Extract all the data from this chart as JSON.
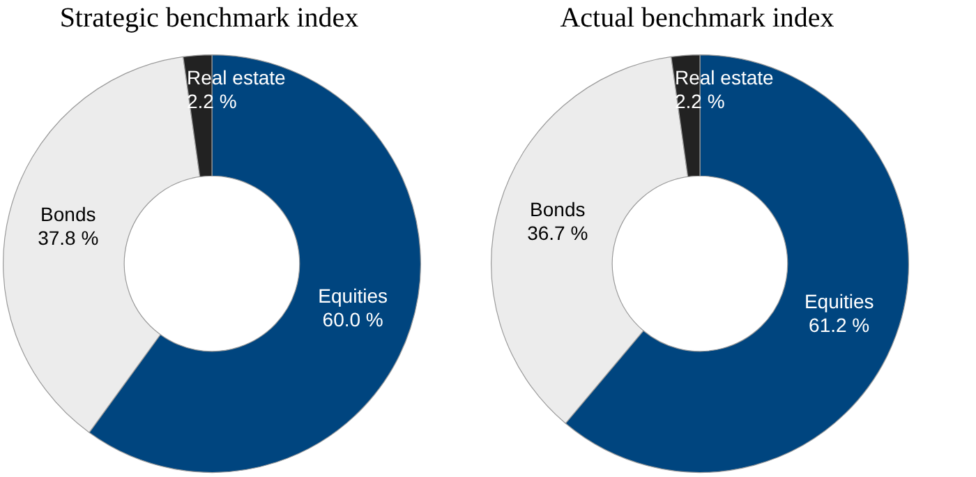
{
  "chart_data": [
    {
      "type": "donut",
      "title": "Strategic benchmark index",
      "categories": [
        "Equities",
        "Bonds",
        "Real estate"
      ],
      "values": [
        60.0,
        37.8,
        2.2
      ],
      "colors": [
        "#00457f",
        "#ececec",
        "#222222"
      ],
      "value_labels": [
        "60.0 %",
        "37.8 %",
        "2.2 %"
      ],
      "legend": false
    },
    {
      "type": "donut",
      "title": "Actual benchmark index",
      "categories": [
        "Equities",
        "Bonds",
        "Real estate"
      ],
      "values": [
        61.2,
        36.7,
        2.2
      ],
      "colors": [
        "#00457f",
        "#ececec",
        "#222222"
      ],
      "value_labels": [
        "61.2 %",
        "36.7 %",
        "2.2 %"
      ],
      "legend": false
    }
  ]
}
